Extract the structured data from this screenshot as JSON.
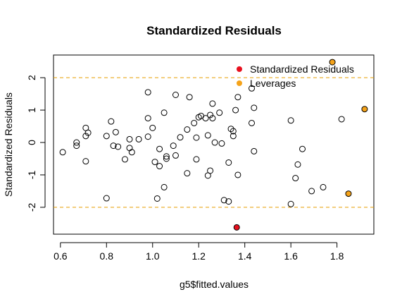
{
  "chart_data": {
    "type": "scatter",
    "title": "Standardized Residuals",
    "xlabel": "g5$fitted.values",
    "ylabel": "Standardized Residuals",
    "xlim": [
      0.57,
      1.96
    ],
    "ylim": [
      -2.83,
      2.7
    ],
    "x_ticks": [
      0.6,
      0.8,
      1.0,
      1.2,
      1.4,
      1.6,
      1.8
    ],
    "x_tick_labels": [
      "0.6",
      "0.8",
      "1.0",
      "1.2",
      "1.4",
      "1.6",
      "1.8"
    ],
    "y_ticks": [
      -2,
      -1,
      0,
      1,
      2
    ],
    "y_tick_labels": [
      "-2",
      "-1",
      "0",
      "1",
      "2"
    ],
    "grid": false,
    "reference_lines": [
      {
        "y": 2,
        "color": "#e69f00",
        "style": "dashed"
      },
      {
        "y": -2,
        "color": "#e69f00",
        "style": "dashed"
      }
    ],
    "legend": {
      "position": "top-right",
      "entries": [
        {
          "label": "Standardized Residuals",
          "color": "#e8101e"
        },
        {
          "label": "Leverages",
          "color": "#f5a31a"
        }
      ]
    },
    "points": [
      {
        "x": 0.61,
        "y": -0.3
      },
      {
        "x": 0.67,
        "y": -0.1
      },
      {
        "x": 0.67,
        "y": 0.0
      },
      {
        "x": 0.71,
        "y": 0.45
      },
      {
        "x": 0.71,
        "y": 0.2
      },
      {
        "x": 0.72,
        "y": 0.3
      },
      {
        "x": 0.71,
        "y": -0.58
      },
      {
        "x": 0.8,
        "y": 0.2
      },
      {
        "x": 0.82,
        "y": 0.65
      },
      {
        "x": 0.83,
        "y": -0.1
      },
      {
        "x": 0.84,
        "y": 0.32
      },
      {
        "x": 0.85,
        "y": -0.13
      },
      {
        "x": 0.88,
        "y": -0.52
      },
      {
        "x": 0.9,
        "y": 0.1
      },
      {
        "x": 0.9,
        "y": -0.17
      },
      {
        "x": 0.91,
        "y": -0.3
      },
      {
        "x": 0.94,
        "y": 0.1
      },
      {
        "x": 0.8,
        "y": -1.72
      },
      {
        "x": 0.98,
        "y": 1.55
      },
      {
        "x": 0.98,
        "y": 0.75
      },
      {
        "x": 0.98,
        "y": 0.18
      },
      {
        "x": 1.0,
        "y": 0.45
      },
      {
        "x": 1.01,
        "y": -0.6
      },
      {
        "x": 1.02,
        "y": -1.73
      },
      {
        "x": 1.03,
        "y": -0.2
      },
      {
        "x": 1.03,
        "y": -0.73
      },
      {
        "x": 1.05,
        "y": 0.92
      },
      {
        "x": 1.05,
        "y": -1.38
      },
      {
        "x": 1.06,
        "y": -0.5
      },
      {
        "x": 1.06,
        "y": -0.43
      },
      {
        "x": 1.09,
        "y": -0.1
      },
      {
        "x": 1.1,
        "y": 1.47
      },
      {
        "x": 1.1,
        "y": -0.4
      },
      {
        "x": 1.12,
        "y": 0.16
      },
      {
        "x": 1.15,
        "y": 0.4
      },
      {
        "x": 1.15,
        "y": -0.95
      },
      {
        "x": 1.16,
        "y": 1.4
      },
      {
        "x": 1.18,
        "y": 0.6
      },
      {
        "x": 1.19,
        "y": 0.15
      },
      {
        "x": 1.19,
        "y": -0.52
      },
      {
        "x": 1.2,
        "y": 0.78
      },
      {
        "x": 1.21,
        "y": 0.82
      },
      {
        "x": 1.23,
        "y": 0.75
      },
      {
        "x": 1.24,
        "y": 0.22
      },
      {
        "x": 1.24,
        "y": -1.02
      },
      {
        "x": 1.25,
        "y": -0.87
      },
      {
        "x": 1.25,
        "y": 0.85
      },
      {
        "x": 1.26,
        "y": 1.2
      },
      {
        "x": 1.26,
        "y": 0.75
      },
      {
        "x": 1.27,
        "y": 0.0
      },
      {
        "x": 1.29,
        "y": 0.92
      },
      {
        "x": 1.3,
        "y": -0.03
      },
      {
        "x": 1.31,
        "y": -1.78
      },
      {
        "x": 1.33,
        "y": -1.82
      },
      {
        "x": 1.33,
        "y": -0.62
      },
      {
        "x": 1.34,
        "y": 0.42
      },
      {
        "x": 1.35,
        "y": 0.35
      },
      {
        "x": 1.35,
        "y": 0.2
      },
      {
        "x": 1.36,
        "y": 1.0
      },
      {
        "x": 1.37,
        "y": 1.4
      },
      {
        "x": 1.37,
        "y": -1.0
      },
      {
        "x": 1.43,
        "y": 1.67
      },
      {
        "x": 1.43,
        "y": 0.6
      },
      {
        "x": 1.44,
        "y": 1.07
      },
      {
        "x": 1.44,
        "y": -0.27
      },
      {
        "x": 1.6,
        "y": 0.68
      },
      {
        "x": 1.6,
        "y": -1.9
      },
      {
        "x": 1.62,
        "y": -1.1
      },
      {
        "x": 1.63,
        "y": -0.68
      },
      {
        "x": 1.65,
        "y": -0.2
      },
      {
        "x": 1.69,
        "y": -1.5
      },
      {
        "x": 1.74,
        "y": -1.38
      },
      {
        "x": 1.82,
        "y": 0.72
      }
    ],
    "highlighted_points": [
      {
        "x": 1.365,
        "y": -2.62,
        "color": "#e8101e"
      },
      {
        "x": 1.78,
        "y": 2.48,
        "color": "#f5a31a"
      },
      {
        "x": 1.92,
        "y": 1.03,
        "color": "#f5a31a"
      },
      {
        "x": 1.85,
        "y": -1.58,
        "color": "#f5a31a"
      }
    ]
  }
}
